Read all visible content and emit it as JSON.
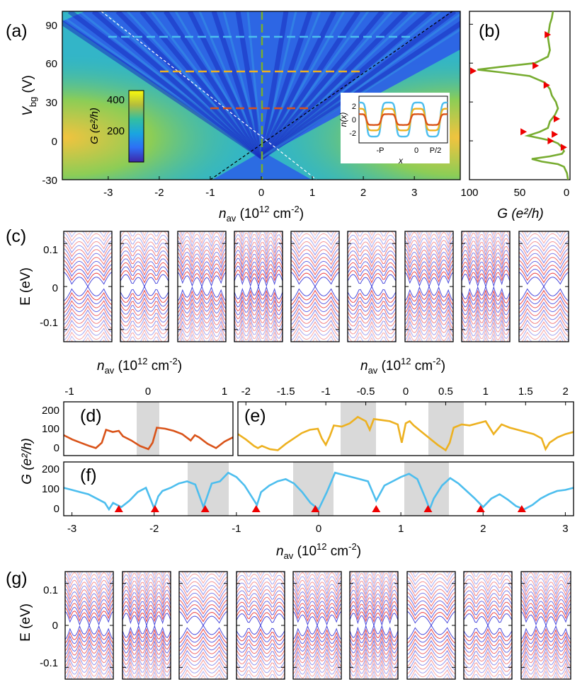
{
  "colors": {
    "orange": "#d95319",
    "yellow": "#edb120",
    "blue": "#4dbeee",
    "green": "#77ac30",
    "band_red": "#e41a1c",
    "band_blue": "#2b2bd6",
    "marker_red": "#ee0000",
    "shade": "#d9d9d9"
  },
  "panel_a": {
    "label": "(a)",
    "ylabel_main": "V",
    "ylabel_sub": "bg",
    "ylabel_unit": " (V)",
    "xlabel_main": "n",
    "xlabel_sub": "av",
    "xlabel_unit": " (10",
    "xlabel_exp": "12",
    "xlabel_end": " cm",
    "xlabel_exp2": "-2",
    "xlabel_close": ")",
    "xticks": [
      "-3",
      "-2",
      "-1",
      "0",
      "1",
      "2",
      "3"
    ],
    "yticks": [
      "90",
      "60",
      "30",
      "0",
      "-30"
    ],
    "colorbar_label": "G (e²/h)",
    "colorbar_ticks": [
      "400",
      "200"
    ],
    "inset": {
      "ylabel": "n(x)",
      "xlabel": "x",
      "yticks": [
        "2",
        "0",
        "-2"
      ],
      "xticks": [
        "-P",
        "0",
        "P/2"
      ]
    }
  },
  "panel_b": {
    "label": "(b)",
    "xticks": [
      "100",
      "50",
      "0"
    ],
    "xlabel": "G (e²/h)"
  },
  "panel_c": {
    "label": "(c)",
    "ylabel": "E (eV)",
    "yticks": [
      "0.1",
      "0",
      "-0.1"
    ],
    "caption_main": "n",
    "caption_sub": "av",
    "caption_unit": " (10",
    "caption_exp": "12",
    "caption_end": " cm",
    "caption_exp2": "-2",
    "caption_close": ")"
  },
  "panel_d": {
    "label": "(d)",
    "top_ticks": [
      "-1",
      "0",
      "1"
    ]
  },
  "panel_e": {
    "label": "(e)",
    "top_ticks": [
      "-2",
      "-1.5",
      "-1",
      "-0.5",
      "0",
      "0.5",
      "1",
      "1.5",
      "2"
    ]
  },
  "panel_de_common": {
    "yticks": [
      "200",
      "100",
      "0"
    ]
  },
  "panel_f": {
    "label": "(f)",
    "ylabel": "G (e²/h)",
    "yticks": [
      "200",
      "100",
      "0"
    ],
    "xticks": [
      "-3",
      "-2",
      "-1",
      "0",
      "1",
      "2",
      "3"
    ],
    "xlabel_main": "n",
    "xlabel_sub": "av",
    "xlabel_unit": " (10",
    "xlabel_exp": "12",
    "xlabel_end": " cm",
    "xlabel_exp2": "-2",
    "xlabel_close": ")"
  },
  "panel_g": {
    "label": "(g)",
    "ylabel": "E (eV)",
    "yticks": [
      "0.1",
      "0",
      "-0.1"
    ]
  },
  "chart_data": [
    {
      "type": "heatmap",
      "panel": "a",
      "title": "",
      "xlabel": "n_av (10^12 cm^-2)",
      "ylabel": "V_bg (V)",
      "xlim": [
        -3.9,
        3.9
      ],
      "ylim": [
        -30,
        100
      ],
      "colorbar": {
        "label": "G (e^2/h)",
        "range": [
          60,
          440
        ],
        "ticks": [
          200,
          400
        ]
      },
      "dashed_lines": [
        {
          "color": "blue",
          "vbg": 81,
          "x_from": -3.0,
          "x_to": 2.9
        },
        {
          "color": "yellow",
          "vbg": 54,
          "x_from": -2.0,
          "x_to": 1.9
        },
        {
          "color": "orange",
          "vbg": 25,
          "x_from": -1.0,
          "x_to": 0.9
        },
        {
          "color": "green",
          "x": 0,
          "vertical": true
        }
      ],
      "diagonals": [
        {
          "style": "white",
          "from": [
            -3.1,
            100
          ],
          "to": [
            1.2,
            -30
          ]
        },
        {
          "style": "black",
          "from": [
            -1.2,
            -30
          ],
          "to": [
            3.7,
            100
          ]
        }
      ]
    },
    {
      "type": "line",
      "panel": "a-inset",
      "xlabel": "x",
      "ylabel": "n(x)",
      "ylim": [
        -3,
        3
      ],
      "series": [
        {
          "name": "blue",
          "amplitude": 2.2
        },
        {
          "name": "yellow",
          "amplitude": 1.4
        },
        {
          "name": "orange",
          "amplitude": 0.7
        }
      ]
    },
    {
      "type": "line",
      "panel": "b",
      "xlabel": "G (e^2/h)",
      "xlim": [
        100,
        0
      ],
      "ylim": [
        -30,
        100
      ],
      "series": [
        {
          "name": "G vs Vbg",
          "color": "green",
          "vbg": [
            100,
            95,
            90,
            85,
            80,
            75,
            70,
            65,
            60,
            57,
            55,
            53,
            50,
            45,
            40,
            35,
            30,
            25,
            20,
            15,
            10,
            7,
            4,
            2,
            0,
            -2,
            -5,
            -8,
            -10,
            -12,
            -14,
            -16,
            -18,
            -20,
            -25,
            -30
          ],
          "g": [
            17,
            18,
            20,
            21,
            22,
            21,
            20,
            22,
            35,
            70,
            92,
            70,
            40,
            25,
            20,
            18,
            14,
            12,
            15,
            20,
            22,
            30,
            42,
            30,
            18,
            12,
            8,
            6,
            8,
            20,
            38,
            28,
            12,
            6,
            3,
            2
          ]
        }
      ],
      "markers": [
        {
          "g": 21,
          "vbg": 82
        },
        {
          "g": 33,
          "vbg": 58
        },
        {
          "g": 95,
          "vbg": 54
        },
        {
          "g": 22,
          "vbg": 43
        },
        {
          "g": 12,
          "vbg": 17
        },
        {
          "g": 45,
          "vbg": 7
        },
        {
          "g": 14,
          "vbg": 5
        },
        {
          "g": 18,
          "vbg": 0
        },
        {
          "g": 5,
          "vbg": -5
        }
      ]
    },
    {
      "type": "line",
      "panel": "d",
      "xlim": [
        -1,
        1
      ],
      "ylim": [
        -20,
        230
      ],
      "shaded": [
        [
          -0.14,
          0.14
        ]
      ],
      "series": [
        {
          "name": "Vbg=25",
          "color": "orange",
          "x": [
            -1,
            -0.9,
            -0.8,
            -0.7,
            -0.62,
            -0.55,
            -0.5,
            -0.42,
            -0.35,
            -0.3,
            -0.2,
            -0.1,
            0,
            0.05,
            0.1,
            0.2,
            0.3,
            0.4,
            0.5,
            0.55,
            0.6,
            0.7,
            0.8,
            0.9,
            1
          ],
          "y": [
            75,
            55,
            40,
            25,
            15,
            40,
            100,
            90,
            95,
            70,
            50,
            25,
            10,
            40,
            110,
            105,
            95,
            80,
            50,
            75,
            65,
            35,
            15,
            45,
            65
          ]
        }
      ]
    },
    {
      "type": "line",
      "panel": "e",
      "xlim": [
        -2.1,
        2.1
      ],
      "ylim": [
        -20,
        230
      ],
      "shaded": [
        [
          -0.72,
          -0.28
        ],
        [
          0.28,
          0.72
        ]
      ],
      "series": [
        {
          "name": "Vbg=54",
          "color": "yellow",
          "x": [
            -2.1,
            -2,
            -1.9,
            -1.85,
            -1.8,
            -1.7,
            -1.6,
            -1.5,
            -1.4,
            -1.3,
            -1.2,
            -1.1,
            -1.05,
            -1,
            -0.95,
            -0.9,
            -0.8,
            -0.7,
            -0.6,
            -0.5,
            -0.45,
            -0.4,
            -0.3,
            -0.2,
            -0.1,
            -0.05,
            0,
            0.05,
            0.1,
            0.2,
            0.3,
            0.4,
            0.5,
            0.55,
            0.6,
            0.7,
            0.8,
            0.9,
            1,
            1.1,
            1.2,
            1.3,
            1.4,
            1.5,
            1.6,
            1.7,
            1.75,
            1.8,
            1.9,
            2,
            2.1
          ],
          "y": [
            80,
            55,
            25,
            15,
            25,
            10,
            5,
            35,
            60,
            85,
            100,
            105,
            60,
            30,
            70,
            120,
            115,
            130,
            160,
            140,
            100,
            150,
            145,
            140,
            125,
            40,
            130,
            140,
            120,
            90,
            60,
            30,
            5,
            40,
            110,
            125,
            120,
            130,
            140,
            80,
            125,
            110,
            100,
            90,
            80,
            60,
            10,
            40,
            65,
            80,
            90
          ]
        }
      ]
    },
    {
      "type": "line",
      "panel": "f",
      "xlabel": "n_av (10^12 cm^-2)",
      "ylabel": "G (e^2/h)",
      "xlim": [
        -3.1,
        3.1
      ],
      "ylim": [
        -20,
        230
      ],
      "shaded": [
        [
          -1.6,
          -1.1
        ],
        [
          -0.3,
          0.2
        ],
        [
          1.05,
          1.6
        ]
      ],
      "series": [
        {
          "name": "Vbg=81",
          "color": "blue",
          "x": [
            -3.1,
            -3,
            -2.9,
            -2.8,
            -2.7,
            -2.6,
            -2.55,
            -2.5,
            -2.4,
            -2.3,
            -2.2,
            -2.1,
            -2,
            -1.95,
            -1.9,
            -1.8,
            -1.7,
            -1.6,
            -1.5,
            -1.4,
            -1.3,
            -1.2,
            -1.1,
            -1,
            -0.9,
            -0.8,
            -0.75,
            -0.7,
            -0.6,
            -0.5,
            -0.4,
            -0.3,
            -0.2,
            -0.1,
            0,
            0.1,
            0.2,
            0.3,
            0.4,
            0.5,
            0.6,
            0.7,
            0.8,
            0.9,
            1,
            1.1,
            1.2,
            1.3,
            1.35,
            1.4,
            1.5,
            1.6,
            1.7,
            1.8,
            1.9,
            2,
            2.1,
            2.2,
            2.3,
            2.4,
            2.5,
            2.6,
            2.7,
            2.8,
            2.9,
            3,
            3.1
          ],
          "y": [
            110,
            100,
            90,
            80,
            60,
            40,
            10,
            40,
            20,
            50,
            90,
            110,
            15,
            70,
            95,
            110,
            130,
            140,
            125,
            20,
            130,
            140,
            180,
            160,
            120,
            60,
            30,
            90,
            120,
            140,
            150,
            130,
            90,
            40,
            10,
            90,
            180,
            170,
            160,
            150,
            140,
            50,
            120,
            140,
            160,
            175,
            150,
            60,
            10,
            60,
            120,
            155,
            130,
            95,
            60,
            20,
            60,
            80,
            55,
            25,
            10,
            30,
            60,
            80,
            95,
            100,
            110
          ]
        }
      ],
      "markers": [
        -2.43,
        -1.99,
        -1.38,
        -0.76,
        -0.04,
        0.7,
        1.33,
        1.97,
        2.47
      ]
    },
    {
      "type": "line",
      "panel": "c",
      "ylabel": "E (eV)",
      "ylim": [
        -0.16,
        0.16
      ],
      "subplots": 9,
      "description_series": "band structures, red and blue branches"
    },
    {
      "type": "line",
      "panel": "g",
      "ylabel": "E (eV)",
      "ylim": [
        -0.16,
        0.16
      ],
      "subplots": 9,
      "description_series": "band structures, red and blue branches"
    }
  ]
}
